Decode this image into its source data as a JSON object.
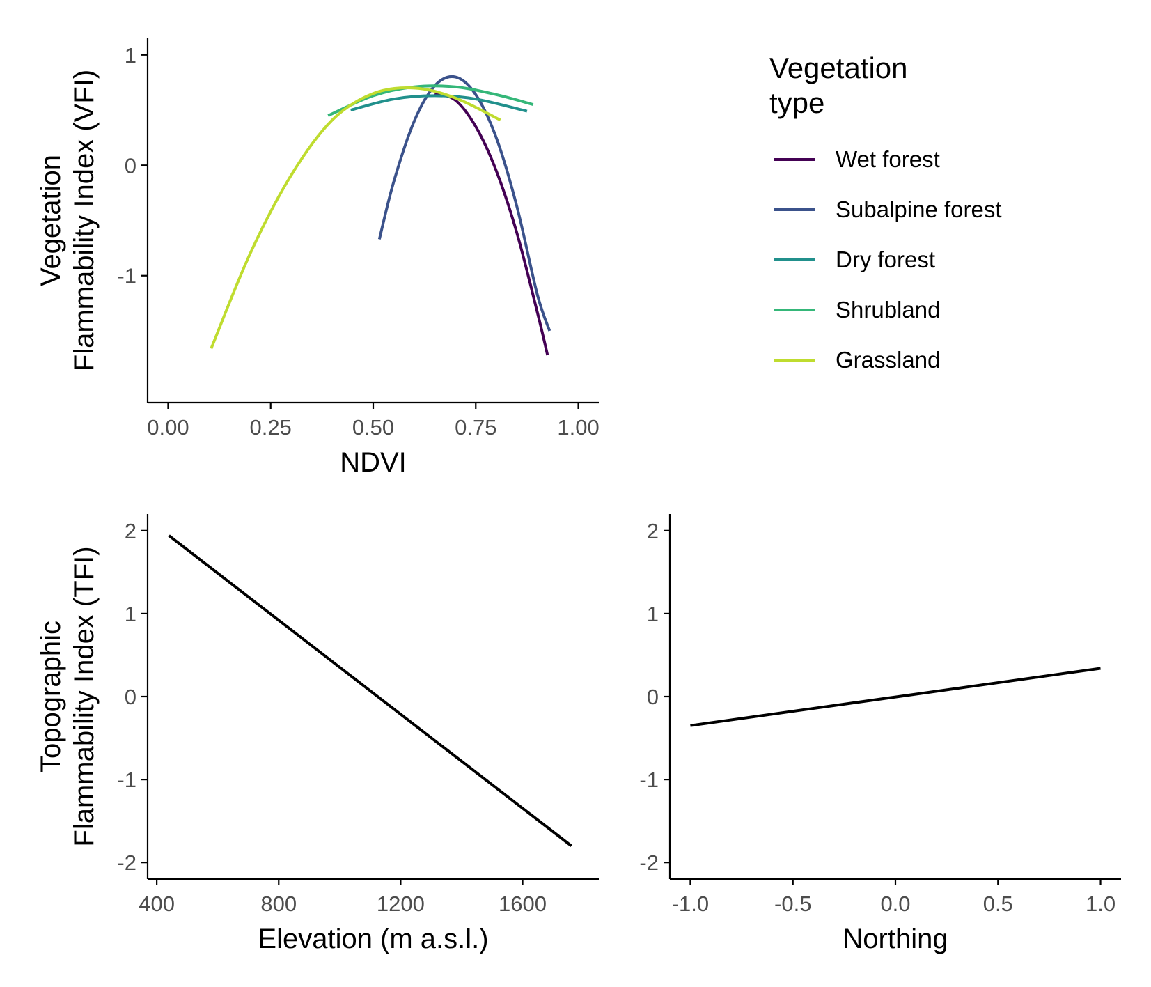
{
  "chart_data": [
    {
      "type": "line",
      "xlabel": "NDVI",
      "ylabel": "Vegetation\nFlammability Index (VFI)",
      "xlim": [
        -0.05,
        1.05
      ],
      "ylim": [
        -2.15,
        1.15
      ],
      "x_ticks": [
        0,
        0.25,
        0.5,
        0.75,
        1.0
      ],
      "x_tick_labels": [
        "0.00",
        "0.25",
        "0.50",
        "0.75",
        "1.00"
      ],
      "y_ticks": [
        1,
        0,
        -1
      ],
      "y_tick_labels": [
        "1",
        "0",
        "-1"
      ],
      "grid": false,
      "legend": {
        "title": "Vegetation\ntype",
        "placement": "right",
        "entries": [
          "Wet forest",
          "Subalpine forest",
          "Dry forest",
          "Shrubland",
          "Grassland"
        ]
      },
      "series": [
        {
          "name": "Wet forest",
          "color": "#440154",
          "x": [
            0.65,
            0.7,
            0.75,
            0.8,
            0.85,
            0.9,
            0.925
          ],
          "y": [
            0.65,
            0.59,
            0.35,
            -0.05,
            -0.61,
            -1.33,
            -1.72
          ]
        },
        {
          "name": "Subalpine forest",
          "color": "#3b528b",
          "x": [
            0.515,
            0.55,
            0.6,
            0.65,
            0.7,
            0.75,
            0.8,
            0.85,
            0.9,
            0.93
          ],
          "y": [
            -0.67,
            -0.15,
            0.4,
            0.72,
            0.8,
            0.64,
            0.25,
            -0.37,
            -1.17,
            -1.5
          ]
        },
        {
          "name": "Dry forest",
          "color": "#21908c",
          "x": [
            0.445,
            0.55,
            0.65,
            0.75,
            0.875
          ],
          "y": [
            0.5,
            0.6,
            0.63,
            0.6,
            0.49
          ]
        },
        {
          "name": "Shrubland",
          "color": "#35b779",
          "x": [
            0.39,
            0.5,
            0.6,
            0.7,
            0.8,
            0.89
          ],
          "y": [
            0.45,
            0.63,
            0.71,
            0.71,
            0.64,
            0.55
          ]
        },
        {
          "name": "Grassland",
          "color": "#bfdc2f",
          "x": [
            0.105,
            0.2,
            0.3,
            0.4,
            0.5,
            0.6,
            0.7,
            0.81
          ],
          "y": [
            -1.66,
            -0.8,
            -0.09,
            0.41,
            0.65,
            0.7,
            0.61,
            0.41
          ]
        }
      ]
    },
    {
      "type": "line",
      "xlabel": "Elevation (m a.s.l.)",
      "ylabel": "Topographic\nFlammability Index (TFI)",
      "xlim": [
        370,
        1850
      ],
      "ylim": [
        -2.2,
        2.2
      ],
      "x_ticks": [
        400,
        800,
        1200,
        1600
      ],
      "x_tick_labels": [
        "400",
        "800",
        "1200",
        "1600"
      ],
      "y_ticks": [
        2,
        1,
        0,
        -1,
        -2
      ],
      "y_tick_labels": [
        "2",
        "1",
        "0",
        "-1",
        "-2"
      ],
      "grid": false,
      "series": [
        {
          "color": "#000000",
          "x": [
            440,
            1760
          ],
          "y": [
            1.94,
            -1.8
          ]
        }
      ]
    },
    {
      "type": "line",
      "xlabel": "Northing",
      "ylabel": "",
      "xlim": [
        -1.1,
        1.1
      ],
      "ylim": [
        -2.2,
        2.2
      ],
      "x_ticks": [
        -1.0,
        -0.5,
        0.0,
        0.5,
        1.0
      ],
      "x_tick_labels": [
        "-1.0",
        "-0.5",
        "0.0",
        "0.5",
        "1.0"
      ],
      "y_ticks": [
        2,
        1,
        0,
        -1,
        -2
      ],
      "y_tick_labels": [
        "2",
        "1",
        "0",
        "-1",
        "-2"
      ],
      "grid": false,
      "series": [
        {
          "color": "#000000",
          "x": [
            -1.0,
            1.0
          ],
          "y": [
            -0.35,
            0.34
          ]
        }
      ]
    }
  ]
}
